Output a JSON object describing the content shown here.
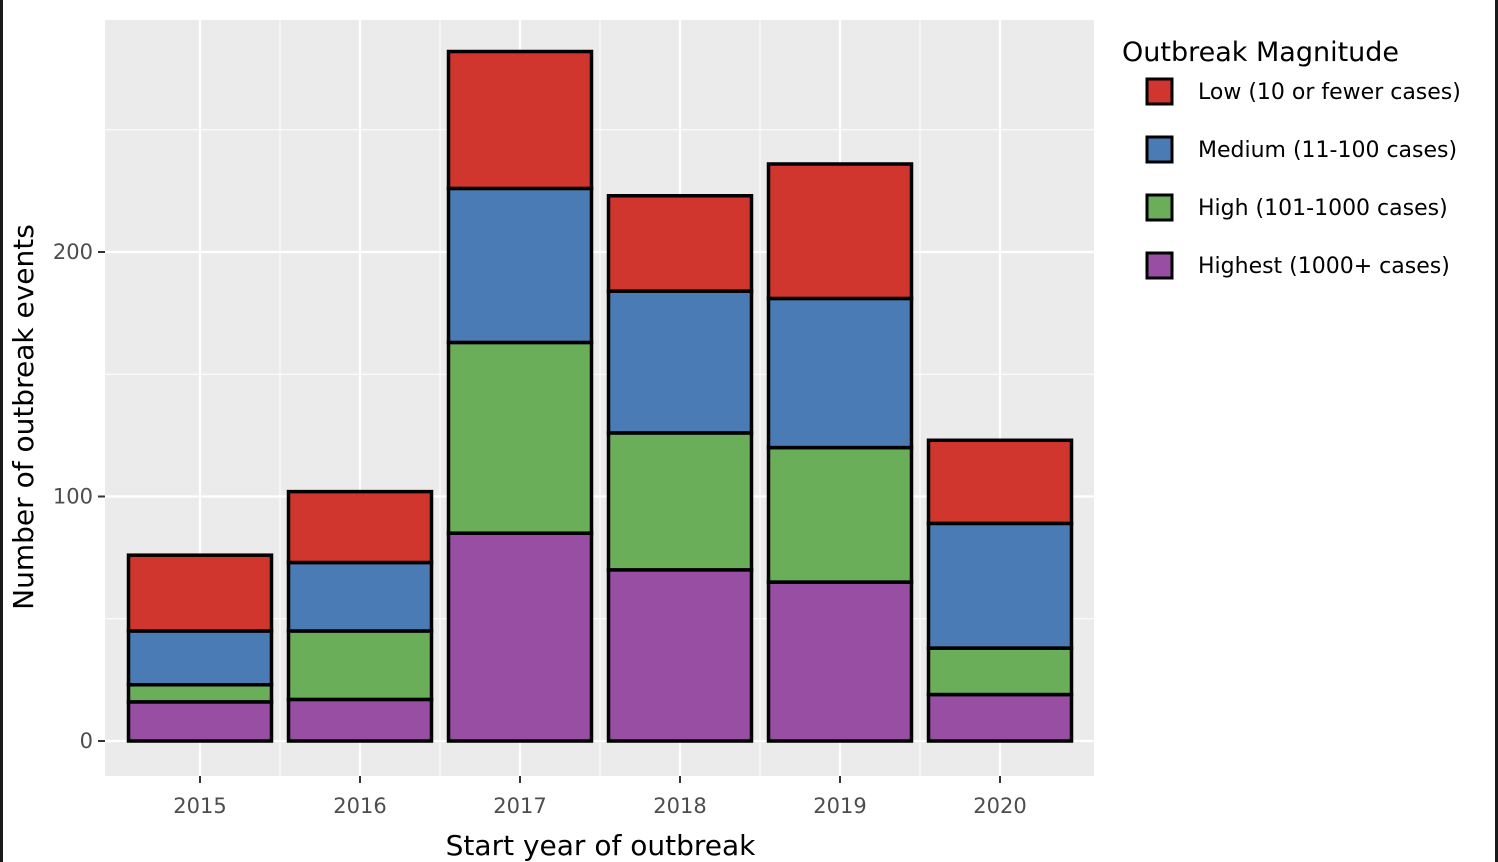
{
  "chart_data": {
    "type": "bar",
    "stacked": true,
    "categories": [
      "2015",
      "2016",
      "2017",
      "2018",
      "2019",
      "2020"
    ],
    "series": [
      {
        "name": "Highest (1000+ cases)",
        "color": "#984EA3",
        "values": [
          16,
          17,
          85,
          70,
          65,
          19
        ]
      },
      {
        "name": "High (101-1000 cases)",
        "color": "#6AAE5A",
        "values": [
          7,
          28,
          78,
          56,
          55,
          19
        ]
      },
      {
        "name": "Medium (11-100 cases)",
        "color": "#4A7BB5",
        "values": [
          22,
          28,
          63,
          58,
          61,
          51
        ]
      },
      {
        "name": "Low (10 or fewer cases)",
        "color": "#D0352E",
        "values": [
          31,
          29,
          56,
          39,
          55,
          34
        ]
      }
    ],
    "xlabel": "Start year of outbreak",
    "ylabel": "Number of outbreak events",
    "yticks": [
      0,
      100,
      200
    ],
    "ylim": [
      0,
      283
    ],
    "grid": true,
    "legend": {
      "title": "Outbreak Magnitude",
      "position": "right",
      "entries": [
        {
          "label": "Low (10 or fewer cases)",
          "color": "#D0352E"
        },
        {
          "label": "Medium (11-100 cases)",
          "color": "#4A7BB5"
        },
        {
          "label": "High (101-1000 cases)",
          "color": "#6AAE5A"
        },
        {
          "label": "Highest (1000+ cases)",
          "color": "#984EA3"
        }
      ]
    },
    "colors": {
      "panel": "#EBEBEB",
      "grid": "#FFFFFF",
      "outline": "#000000"
    }
  }
}
